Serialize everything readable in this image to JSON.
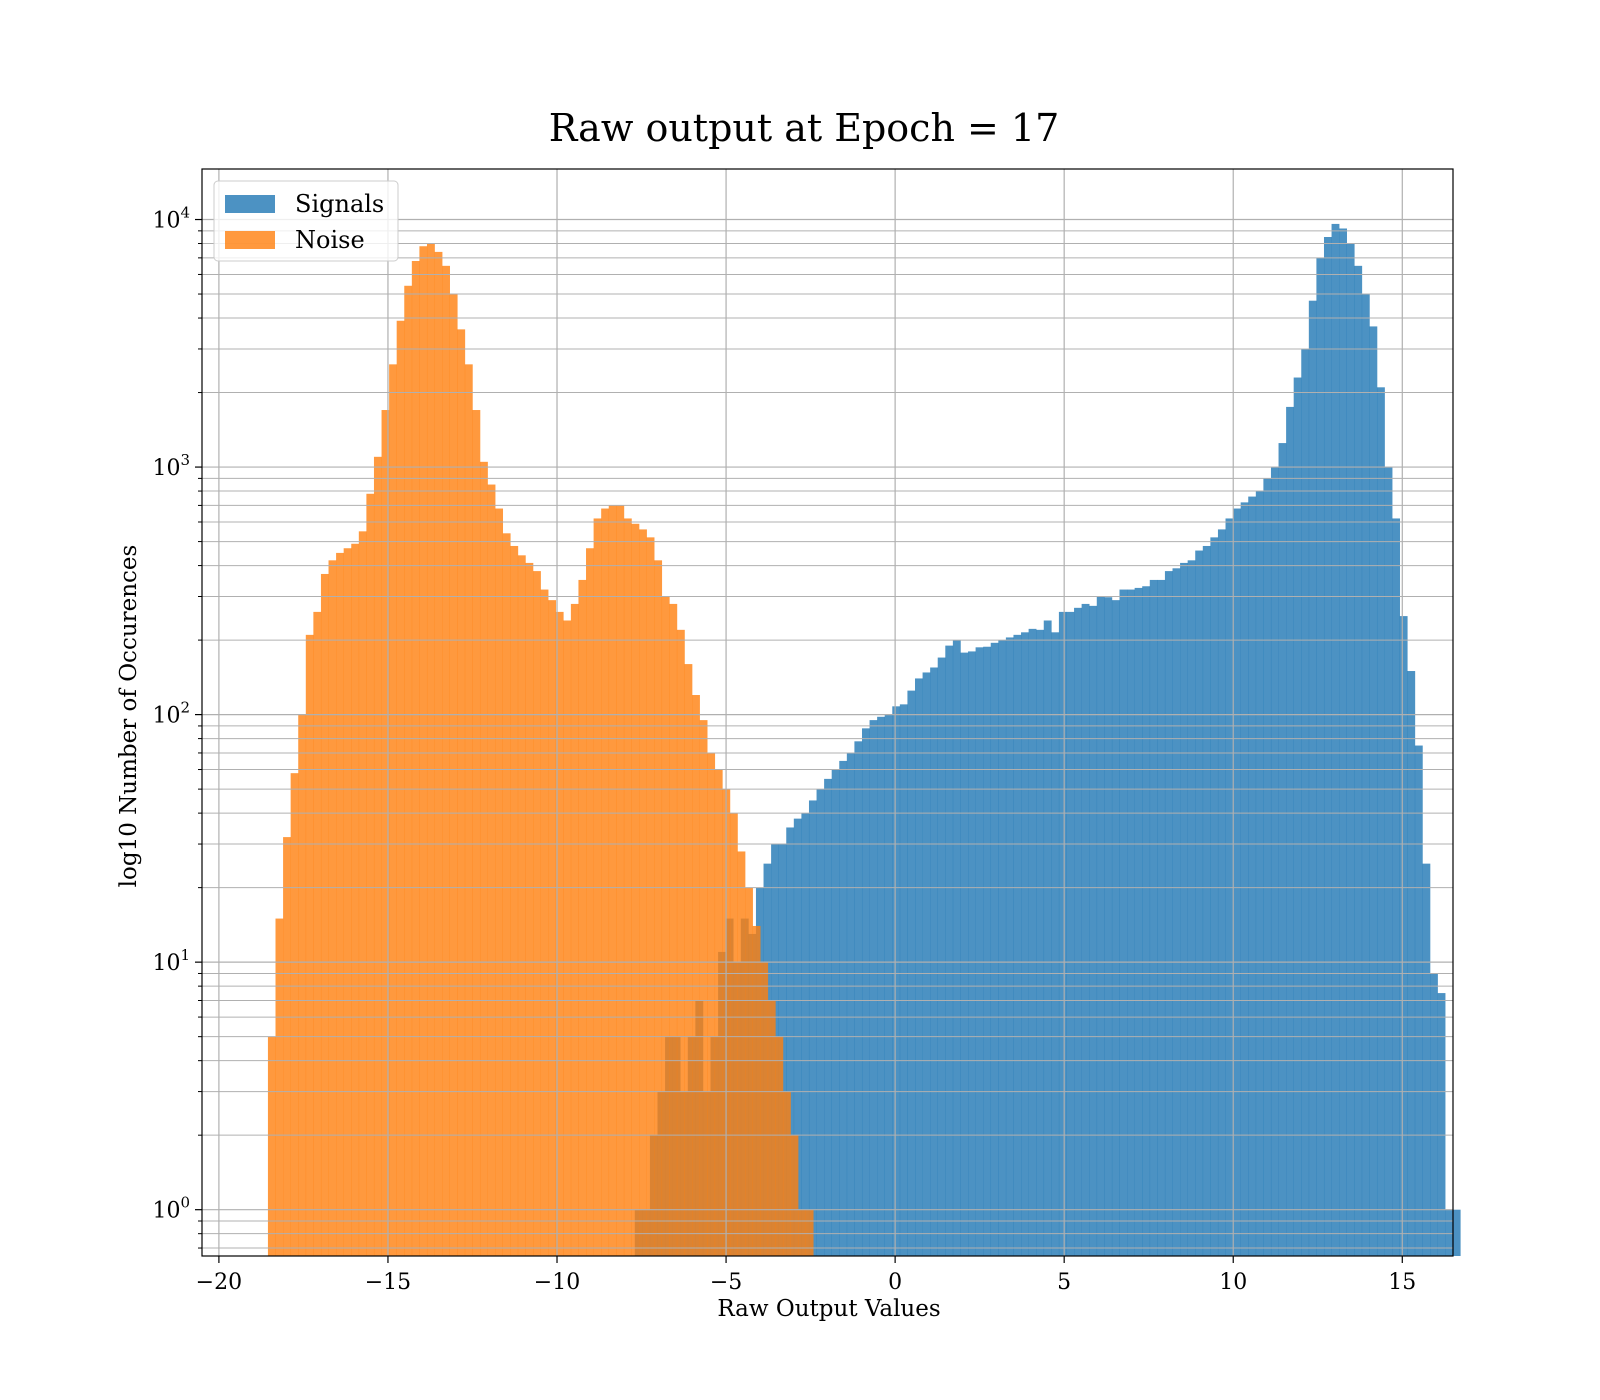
{
  "chart_data": {
    "type": "bar",
    "subtype": "overlapping-histogram",
    "title": "Raw output at Epoch = 17",
    "xlabel": "Raw Output Values",
    "ylabel": "log10 Number of Occurences",
    "xlim": [
      -20.5,
      16.5
    ],
    "ylim": [
      0.65,
      16000
    ],
    "yscale": "log",
    "grid": true,
    "legend_position": "top-left",
    "xticks": [
      {
        "value": -20,
        "label": "−20"
      },
      {
        "value": -15,
        "label": "−15"
      },
      {
        "value": -10,
        "label": "−10"
      },
      {
        "value": -5,
        "label": "−5"
      },
      {
        "value": 0,
        "label": "0"
      },
      {
        "value": 5,
        "label": "5"
      },
      {
        "value": 10,
        "label": "10"
      },
      {
        "value": 15,
        "label": "15"
      }
    ],
    "yticks": [
      {
        "value": 1,
        "base": "10",
        "exp": "0"
      },
      {
        "value": 10,
        "base": "10",
        "exp": "1"
      },
      {
        "value": 100,
        "base": "10",
        "exp": "2"
      },
      {
        "value": 1000,
        "base": "10",
        "exp": "3"
      },
      {
        "value": 10000,
        "base": "10",
        "exp": "4"
      }
    ],
    "series": [
      {
        "name": "Signals",
        "color": "#1f77b4",
        "opacity": 0.8,
        "bin_start": -7.7,
        "bin_width": 0.224,
        "counts": [
          1,
          1,
          2,
          3,
          5,
          5,
          3,
          5,
          7,
          3,
          5,
          11,
          15,
          10,
          15,
          13,
          20,
          25,
          30,
          30,
          35,
          38,
          40,
          45,
          50,
          55,
          60,
          65,
          70,
          78,
          88,
          95,
          98,
          100,
          108,
          110,
          125,
          140,
          148,
          155,
          170,
          190,
          200,
          178,
          180,
          187,
          188,
          195,
          200,
          205,
          210,
          215,
          222,
          220,
          240,
          215,
          260,
          260,
          270,
          280,
          275,
          300,
          298,
          290,
          320,
          320,
          325,
          330,
          350,
          350,
          380,
          390,
          410,
          420,
          460,
          480,
          520,
          560,
          620,
          680,
          720,
          760,
          800,
          900,
          1000,
          1250,
          1750,
          2300,
          3000,
          4700,
          7000,
          8500,
          9600,
          9200,
          8000,
          6500,
          5000,
          3700,
          2100,
          1000,
          620,
          250,
          150,
          75,
          25,
          9,
          7.5,
          1,
          1
        ]
      },
      {
        "name": "Noise",
        "color": "#ff7f0e",
        "opacity": 0.8,
        "bin_start": -18.55,
        "bin_width": 0.224,
        "counts": [
          5,
          15,
          32,
          58,
          100,
          210,
          260,
          370,
          420,
          450,
          470,
          490,
          550,
          780,
          1100,
          1700,
          2600,
          3900,
          5400,
          6800,
          7800,
          8000,
          7400,
          6500,
          5000,
          3600,
          2600,
          1700,
          1050,
          850,
          680,
          540,
          480,
          440,
          410,
          380,
          320,
          290,
          260,
          240,
          280,
          350,
          470,
          620,
          680,
          700,
          700,
          620,
          590,
          560,
          520,
          420,
          300,
          280,
          220,
          160,
          120,
          95,
          70,
          60,
          50,
          40,
          28,
          20,
          14,
          10,
          7,
          5,
          3,
          2,
          1,
          1
        ]
      }
    ]
  }
}
